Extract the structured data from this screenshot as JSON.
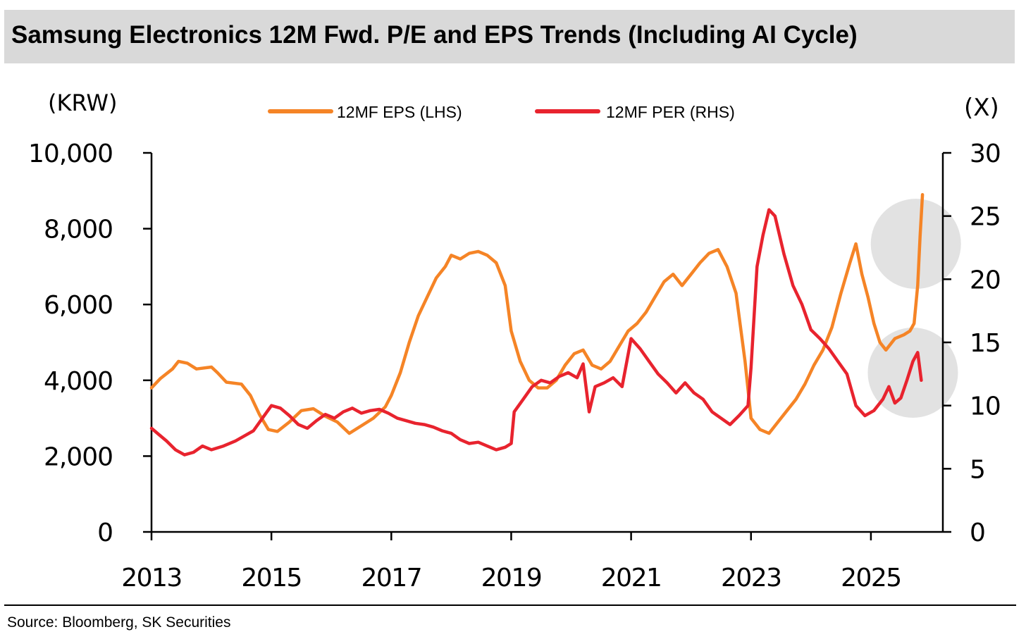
{
  "header": {
    "title": "Samsung Electronics 12M Fwd. P/E and EPS Trends (Including AI Cycle)"
  },
  "footer": {
    "source": "Source: Bloomberg, SK Securities"
  },
  "chart_data": {
    "type": "line",
    "title": "Samsung Electronics 12M Fwd. P/E and EPS Trends (Including AI Cycle)",
    "left_axis": {
      "unit_label": "(KRW)",
      "range": [
        0,
        10000
      ],
      "ticks": [
        0,
        2000,
        4000,
        6000,
        8000,
        10000
      ],
      "tick_labels": [
        "0",
        "2,000",
        "4,000",
        "6,000",
        "8,000",
        "10,000"
      ]
    },
    "right_axis": {
      "unit_label": "(X)",
      "range": [
        0,
        30
      ],
      "ticks": [
        0,
        5,
        10,
        15,
        20,
        25,
        30
      ],
      "tick_labels": [
        "0",
        "5",
        "10",
        "15",
        "20",
        "25",
        "30"
      ]
    },
    "x_axis": {
      "range": [
        2013,
        2026.2
      ],
      "ticks": [
        2013,
        2015,
        2017,
        2019,
        2021,
        2023,
        2025
      ],
      "tick_labels": [
        "2013",
        "2015",
        "2017",
        "2019",
        "2021",
        "2023",
        "2025"
      ]
    },
    "grid": false,
    "legend": {
      "placement": "top-center",
      "entries": [
        "12MF EPS (LHS)",
        "12MF PER (RHS)"
      ]
    },
    "highlights": [
      {
        "name": "eps-highlight",
        "x": 2025.75,
        "axis": "left",
        "y": 7600
      },
      {
        "name": "per-highlight",
        "x": 2025.7,
        "axis": "right",
        "y": 12.6
      }
    ],
    "series": [
      {
        "name": "12MF EPS (LHS)",
        "axis": "left",
        "color": "#f58426",
        "points": [
          [
            2013.0,
            3800
          ],
          [
            2013.15,
            4050
          ],
          [
            2013.35,
            4300
          ],
          [
            2013.45,
            4500
          ],
          [
            2013.6,
            4450
          ],
          [
            2013.75,
            4300
          ],
          [
            2014.0,
            4350
          ],
          [
            2014.1,
            4200
          ],
          [
            2014.25,
            3950
          ],
          [
            2014.5,
            3900
          ],
          [
            2014.65,
            3600
          ],
          [
            2014.8,
            3100
          ],
          [
            2014.95,
            2700
          ],
          [
            2015.1,
            2650
          ],
          [
            2015.3,
            2900
          ],
          [
            2015.5,
            3200
          ],
          [
            2015.7,
            3250
          ],
          [
            2015.9,
            3050
          ],
          [
            2016.1,
            2900
          ],
          [
            2016.3,
            2600
          ],
          [
            2016.5,
            2800
          ],
          [
            2016.7,
            3000
          ],
          [
            2016.9,
            3300
          ],
          [
            2017.0,
            3600
          ],
          [
            2017.15,
            4200
          ],
          [
            2017.3,
            5000
          ],
          [
            2017.45,
            5700
          ],
          [
            2017.6,
            6200
          ],
          [
            2017.75,
            6700
          ],
          [
            2017.9,
            7000
          ],
          [
            2018.0,
            7300
          ],
          [
            2018.15,
            7200
          ],
          [
            2018.3,
            7350
          ],
          [
            2018.45,
            7400
          ],
          [
            2018.6,
            7300
          ],
          [
            2018.75,
            7100
          ],
          [
            2018.9,
            6500
          ],
          [
            2019.0,
            5300
          ],
          [
            2019.15,
            4500
          ],
          [
            2019.3,
            4000
          ],
          [
            2019.45,
            3800
          ],
          [
            2019.6,
            3800
          ],
          [
            2019.75,
            4000
          ],
          [
            2019.9,
            4400
          ],
          [
            2020.05,
            4700
          ],
          [
            2020.2,
            4800
          ],
          [
            2020.35,
            4400
          ],
          [
            2020.5,
            4300
          ],
          [
            2020.65,
            4500
          ],
          [
            2020.8,
            4900
          ],
          [
            2020.95,
            5300
          ],
          [
            2021.1,
            5500
          ],
          [
            2021.25,
            5800
          ],
          [
            2021.4,
            6200
          ],
          [
            2021.55,
            6600
          ],
          [
            2021.7,
            6800
          ],
          [
            2021.85,
            6500
          ],
          [
            2022.0,
            6800
          ],
          [
            2022.15,
            7100
          ],
          [
            2022.3,
            7350
          ],
          [
            2022.45,
            7450
          ],
          [
            2022.6,
            7000
          ],
          [
            2022.75,
            6300
          ],
          [
            2022.9,
            4500
          ],
          [
            2023.0,
            3000
          ],
          [
            2023.15,
            2700
          ],
          [
            2023.3,
            2600
          ],
          [
            2023.45,
            2900
          ],
          [
            2023.6,
            3200
          ],
          [
            2023.75,
            3500
          ],
          [
            2023.9,
            3900
          ],
          [
            2024.05,
            4400
          ],
          [
            2024.2,
            4800
          ],
          [
            2024.35,
            5400
          ],
          [
            2024.5,
            6300
          ],
          [
            2024.65,
            7100
          ],
          [
            2024.75,
            7600
          ],
          [
            2024.85,
            6800
          ],
          [
            2024.95,
            6200
          ],
          [
            2025.05,
            5500
          ],
          [
            2025.15,
            5000
          ],
          [
            2025.25,
            4800
          ],
          [
            2025.4,
            5100
          ],
          [
            2025.55,
            5200
          ],
          [
            2025.65,
            5300
          ],
          [
            2025.72,
            5500
          ],
          [
            2025.78,
            6500
          ],
          [
            2025.82,
            7800
          ],
          [
            2025.86,
            8900
          ]
        ]
      },
      {
        "name": "12MF PER (RHS)",
        "axis": "right",
        "color": "#e8232e",
        "points": [
          [
            2013.0,
            8.2
          ],
          [
            2013.1,
            7.8
          ],
          [
            2013.25,
            7.2
          ],
          [
            2013.4,
            6.5
          ],
          [
            2013.55,
            6.1
          ],
          [
            2013.7,
            6.3
          ],
          [
            2013.85,
            6.8
          ],
          [
            2014.0,
            6.5
          ],
          [
            2014.2,
            6.8
          ],
          [
            2014.4,
            7.2
          ],
          [
            2014.55,
            7.6
          ],
          [
            2014.7,
            8.0
          ],
          [
            2014.85,
            9.0
          ],
          [
            2015.0,
            10.0
          ],
          [
            2015.15,
            9.8
          ],
          [
            2015.3,
            9.2
          ],
          [
            2015.45,
            8.5
          ],
          [
            2015.6,
            8.2
          ],
          [
            2015.75,
            8.8
          ],
          [
            2015.9,
            9.3
          ],
          [
            2016.05,
            9.0
          ],
          [
            2016.2,
            9.5
          ],
          [
            2016.35,
            9.8
          ],
          [
            2016.5,
            9.4
          ],
          [
            2016.65,
            9.6
          ],
          [
            2016.8,
            9.7
          ],
          [
            2016.95,
            9.4
          ],
          [
            2017.1,
            9.0
          ],
          [
            2017.25,
            8.8
          ],
          [
            2017.4,
            8.6
          ],
          [
            2017.55,
            8.5
          ],
          [
            2017.7,
            8.3
          ],
          [
            2017.85,
            8.0
          ],
          [
            2018.0,
            7.8
          ],
          [
            2018.15,
            7.3
          ],
          [
            2018.3,
            7.0
          ],
          [
            2018.45,
            7.1
          ],
          [
            2018.6,
            6.8
          ],
          [
            2018.75,
            6.5
          ],
          [
            2018.9,
            6.7
          ],
          [
            2019.0,
            7.0
          ],
          [
            2019.05,
            9.5
          ],
          [
            2019.2,
            10.5
          ],
          [
            2019.35,
            11.5
          ],
          [
            2019.5,
            12.0
          ],
          [
            2019.65,
            11.8
          ],
          [
            2019.8,
            12.3
          ],
          [
            2019.95,
            12.6
          ],
          [
            2020.1,
            12.2
          ],
          [
            2020.2,
            13.3
          ],
          [
            2020.3,
            9.5
          ],
          [
            2020.4,
            11.5
          ],
          [
            2020.55,
            11.8
          ],
          [
            2020.7,
            12.2
          ],
          [
            2020.85,
            11.5
          ],
          [
            2021.0,
            15.3
          ],
          [
            2021.15,
            14.5
          ],
          [
            2021.3,
            13.5
          ],
          [
            2021.45,
            12.5
          ],
          [
            2021.6,
            11.8
          ],
          [
            2021.75,
            11.0
          ],
          [
            2021.9,
            11.8
          ],
          [
            2022.05,
            11.0
          ],
          [
            2022.2,
            10.5
          ],
          [
            2022.35,
            9.5
          ],
          [
            2022.5,
            9.0
          ],
          [
            2022.65,
            8.5
          ],
          [
            2022.8,
            9.2
          ],
          [
            2022.95,
            10.0
          ],
          [
            2023.0,
            13.0
          ],
          [
            2023.1,
            21.0
          ],
          [
            2023.2,
            23.5
          ],
          [
            2023.3,
            25.5
          ],
          [
            2023.4,
            25.0
          ],
          [
            2023.55,
            22.0
          ],
          [
            2023.7,
            19.5
          ],
          [
            2023.85,
            18.0
          ],
          [
            2024.0,
            16.0
          ],
          [
            2024.15,
            15.3
          ],
          [
            2024.3,
            14.5
          ],
          [
            2024.45,
            13.5
          ],
          [
            2024.6,
            12.5
          ],
          [
            2024.75,
            10.0
          ],
          [
            2024.9,
            9.2
          ],
          [
            2025.05,
            9.6
          ],
          [
            2025.2,
            10.5
          ],
          [
            2025.3,
            11.5
          ],
          [
            2025.4,
            10.2
          ],
          [
            2025.5,
            10.6
          ],
          [
            2025.6,
            12.0
          ],
          [
            2025.7,
            13.5
          ],
          [
            2025.78,
            14.2
          ],
          [
            2025.84,
            12.0
          ]
        ]
      }
    ]
  }
}
